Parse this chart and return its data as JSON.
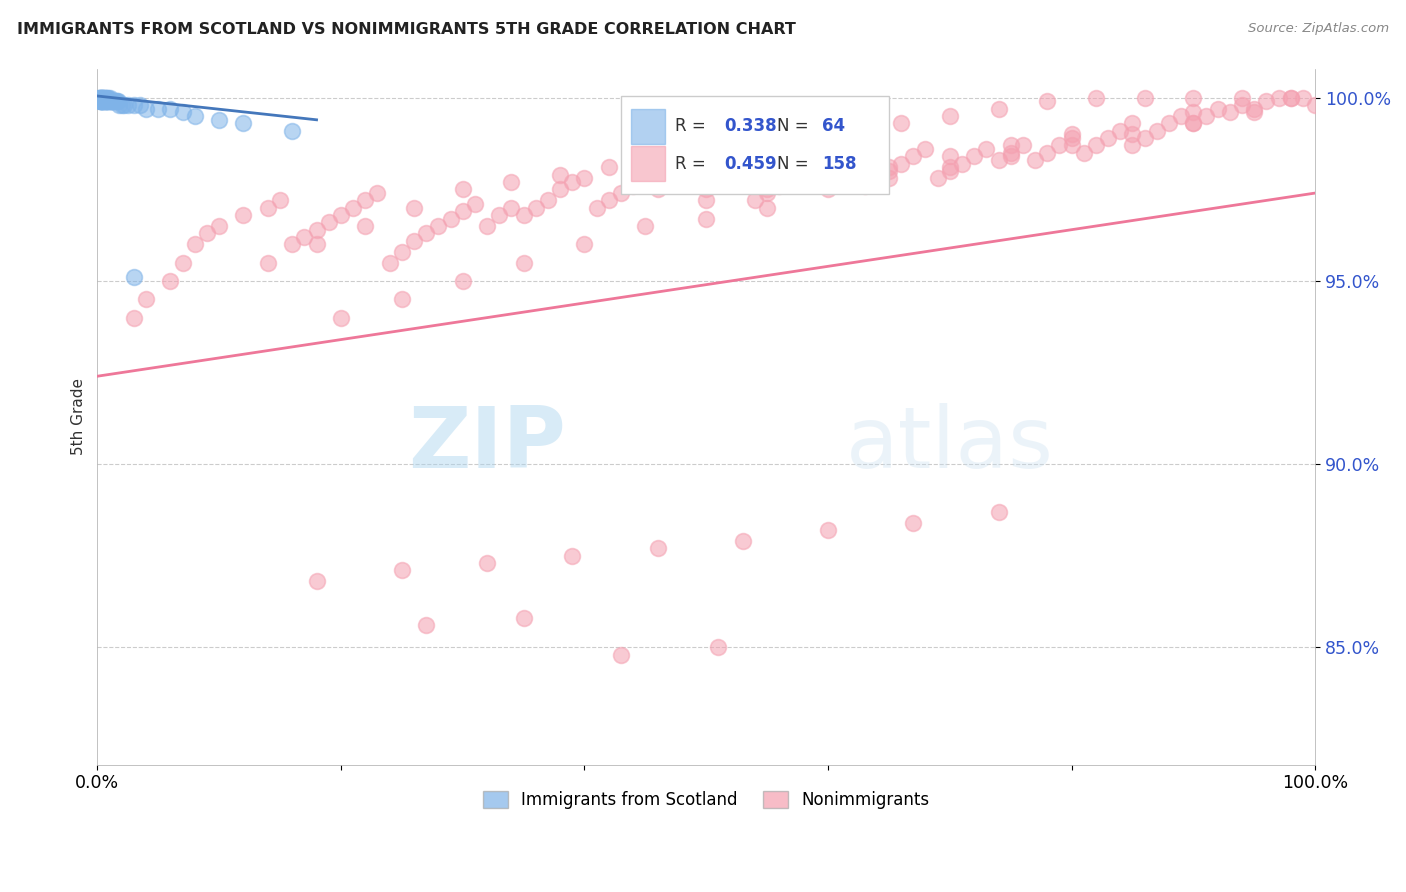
{
  "title": "IMMIGRANTS FROM SCOTLAND VS NONIMMIGRANTS 5TH GRADE CORRELATION CHART",
  "source": "Source: ZipAtlas.com",
  "ylabel": "5th Grade",
  "xlim": [
    0.0,
    1.0
  ],
  "ylim": [
    0.818,
    1.008
  ],
  "yticks": [
    0.85,
    0.9,
    0.95,
    1.0
  ],
  "ytick_labels": [
    "85.0%",
    "90.0%",
    "95.0%",
    "100.0%"
  ],
  "xticks": [
    0.0,
    0.2,
    0.4,
    0.6,
    0.8,
    1.0
  ],
  "xtick_labels": [
    "0.0%",
    "",
    "",
    "",
    "",
    "100.0%"
  ],
  "legend_r_blue": "0.338",
  "legend_n_blue": "64",
  "legend_r_pink": "0.459",
  "legend_n_pink": "158",
  "blue_color": "#7fb3e8",
  "pink_color": "#f4a0b0",
  "blue_line_color": "#4477bb",
  "pink_line_color": "#ee7799",
  "watermark_zip": "ZIP",
  "watermark_atlas": "atlas",
  "blue_scatter_x": [
    0.001,
    0.001,
    0.002,
    0.002,
    0.002,
    0.002,
    0.003,
    0.003,
    0.003,
    0.003,
    0.003,
    0.004,
    0.004,
    0.004,
    0.004,
    0.004,
    0.005,
    0.005,
    0.005,
    0.005,
    0.005,
    0.005,
    0.006,
    0.006,
    0.006,
    0.006,
    0.007,
    0.007,
    0.007,
    0.007,
    0.008,
    0.008,
    0.008,
    0.009,
    0.009,
    0.009,
    0.01,
    0.01,
    0.01,
    0.011,
    0.011,
    0.012,
    0.012,
    0.013,
    0.013,
    0.014,
    0.015,
    0.016,
    0.017,
    0.018,
    0.02,
    0.022,
    0.025,
    0.03,
    0.035,
    0.04,
    0.05,
    0.06,
    0.07,
    0.08,
    0.1,
    0.12,
    0.16,
    0.03
  ],
  "blue_scatter_y": [
    1.0,
    1.0,
    1.0,
    1.0,
    0.999,
    0.999,
    1.0,
    1.0,
    0.999,
    0.999,
    0.999,
    1.0,
    1.0,
    0.999,
    0.999,
    0.999,
    1.0,
    1.0,
    1.0,
    0.999,
    0.999,
    0.999,
    1.0,
    1.0,
    0.999,
    0.999,
    1.0,
    0.999,
    0.999,
    0.999,
    1.0,
    0.999,
    0.999,
    1.0,
    0.999,
    0.999,
    1.0,
    0.999,
    0.999,
    0.999,
    0.999,
    0.999,
    0.999,
    0.999,
    0.999,
    0.999,
    0.999,
    0.999,
    0.999,
    0.998,
    0.998,
    0.998,
    0.998,
    0.998,
    0.998,
    0.997,
    0.997,
    0.997,
    0.996,
    0.995,
    0.994,
    0.993,
    0.991,
    0.951
  ],
  "pink_scatter_x": [
    0.03,
    0.04,
    0.06,
    0.07,
    0.08,
    0.09,
    0.1,
    0.12,
    0.14,
    0.15,
    0.16,
    0.17,
    0.18,
    0.19,
    0.2,
    0.21,
    0.22,
    0.23,
    0.24,
    0.25,
    0.26,
    0.27,
    0.28,
    0.29,
    0.3,
    0.31,
    0.32,
    0.33,
    0.34,
    0.35,
    0.36,
    0.37,
    0.38,
    0.39,
    0.4,
    0.41,
    0.42,
    0.43,
    0.44,
    0.45,
    0.46,
    0.47,
    0.48,
    0.49,
    0.5,
    0.51,
    0.52,
    0.53,
    0.54,
    0.55,
    0.56,
    0.57,
    0.58,
    0.59,
    0.6,
    0.61,
    0.62,
    0.63,
    0.64,
    0.65,
    0.66,
    0.67,
    0.68,
    0.69,
    0.7,
    0.71,
    0.72,
    0.73,
    0.74,
    0.75,
    0.76,
    0.77,
    0.78,
    0.79,
    0.8,
    0.81,
    0.82,
    0.83,
    0.84,
    0.85,
    0.86,
    0.87,
    0.88,
    0.89,
    0.9,
    0.91,
    0.92,
    0.93,
    0.94,
    0.95,
    0.96,
    0.97,
    0.98,
    0.99,
    1.0,
    0.14,
    0.18,
    0.22,
    0.26,
    0.3,
    0.34,
    0.38,
    0.42,
    0.46,
    0.5,
    0.54,
    0.58,
    0.62,
    0.66,
    0.7,
    0.74,
    0.78,
    0.82,
    0.86,
    0.9,
    0.94,
    0.98,
    0.2,
    0.25,
    0.3,
    0.35,
    0.4,
    0.45,
    0.5,
    0.55,
    0.6,
    0.65,
    0.7,
    0.75,
    0.8,
    0.85,
    0.9,
    0.95,
    0.5,
    0.55,
    0.6,
    0.65,
    0.7,
    0.75,
    0.8,
    0.85,
    0.9,
    0.18,
    0.25,
    0.32,
    0.39,
    0.46,
    0.53,
    0.6,
    0.67,
    0.74,
    0.27,
    0.35,
    0.43,
    0.51
  ],
  "pink_scatter_y": [
    0.94,
    0.945,
    0.95,
    0.955,
    0.96,
    0.963,
    0.965,
    0.968,
    0.97,
    0.972,
    0.96,
    0.962,
    0.964,
    0.966,
    0.968,
    0.97,
    0.972,
    0.974,
    0.955,
    0.958,
    0.961,
    0.963,
    0.965,
    0.967,
    0.969,
    0.971,
    0.965,
    0.968,
    0.97,
    0.968,
    0.97,
    0.972,
    0.975,
    0.977,
    0.978,
    0.97,
    0.972,
    0.974,
    0.976,
    0.978,
    0.975,
    0.977,
    0.98,
    0.982,
    0.975,
    0.977,
    0.979,
    0.981,
    0.972,
    0.974,
    0.976,
    0.978,
    0.98,
    0.982,
    0.98,
    0.982,
    0.984,
    0.976,
    0.978,
    0.98,
    0.982,
    0.984,
    0.986,
    0.978,
    0.98,
    0.982,
    0.984,
    0.986,
    0.983,
    0.985,
    0.987,
    0.983,
    0.985,
    0.987,
    0.989,
    0.985,
    0.987,
    0.989,
    0.991,
    0.987,
    0.989,
    0.991,
    0.993,
    0.995,
    0.993,
    0.995,
    0.997,
    0.996,
    0.998,
    0.997,
    0.999,
    1.0,
    1.0,
    1.0,
    0.998,
    0.955,
    0.96,
    0.965,
    0.97,
    0.975,
    0.977,
    0.979,
    0.981,
    0.983,
    0.985,
    0.987,
    0.989,
    0.991,
    0.993,
    0.995,
    0.997,
    0.999,
    1.0,
    1.0,
    1.0,
    1.0,
    1.0,
    0.94,
    0.945,
    0.95,
    0.955,
    0.96,
    0.965,
    0.967,
    0.97,
    0.975,
    0.978,
    0.981,
    0.984,
    0.987,
    0.99,
    0.993,
    0.996,
    0.972,
    0.975,
    0.978,
    0.981,
    0.984,
    0.987,
    0.99,
    0.993,
    0.996,
    0.868,
    0.871,
    0.873,
    0.875,
    0.877,
    0.879,
    0.882,
    0.884,
    0.887,
    0.856,
    0.858,
    0.848,
    0.85
  ],
  "blue_trendline_x": [
    0.0,
    0.18
  ],
  "blue_trendline_y": [
    1.0005,
    0.994
  ],
  "pink_trendline_x": [
    0.0,
    1.0
  ],
  "pink_trendline_y": [
    0.924,
    0.974
  ]
}
